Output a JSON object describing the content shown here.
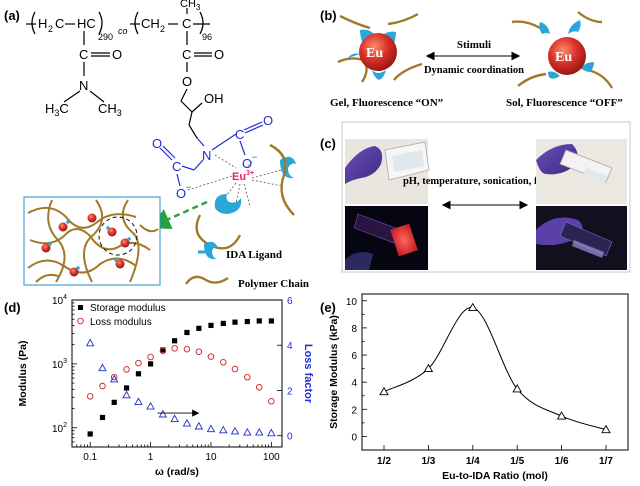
{
  "figure": {
    "panel_labels": {
      "a": "(a)",
      "b": "(b)",
      "c": "(c)",
      "d": "(d)",
      "e": "(e)"
    }
  },
  "panel_a": {
    "subscript_290": "290",
    "co_label": "co",
    "subscript_96": "96",
    "methyl_top": "CH",
    "methyl_top_sub": "3",
    "c_left": "C",
    "o_left": "O",
    "c_right": "C",
    "o_right": "O",
    "n_label": "N",
    "h3c_left": "H",
    "h3c_left_sub": "3",
    "h3c_left_c": "C",
    "ch3_right": "CH",
    "ch3_right_sub": "3",
    "o_ester": "O",
    "oh_label": "OH",
    "n_ida": "N",
    "c_ida_right": "C",
    "o_ida_right": "O",
    "o_minus_right": "O",
    "c_ida_left": "C",
    "o_ida_left": "O",
    "o_minus_left": "O",
    "eu_ion": "Eu",
    "eu_charge": "3+",
    "legend_ligand": "IDA Ligand",
    "legend_chain": "Polymer Chain"
  },
  "panel_b": {
    "eu_left": "Eu",
    "eu_right": "Eu",
    "arrow_top_label": "Stimuli",
    "arrow_bottom_label": "Dynamic coordination",
    "caption_left": "Gel, Fluorescence “ON”",
    "caption_right": "Sol, Fluorescence “OFF”"
  },
  "panel_c": {
    "arrow_label": "pH, temperature, sonication, force…"
  },
  "panel_d": {
    "legend": [
      "Storage modulus",
      "Loss modulus"
    ]
  },
  "panel_e": {},
  "chart_data": [
    {
      "type": "scatter",
      "xlabel": "ω (rad/s)",
      "ylabel": "Modulus (Pa)",
      "y2label": "Loss factor",
      "x_scale": "log",
      "y_scale": "log",
      "xlim": [
        0.05,
        150
      ],
      "ylim": [
        50,
        10000
      ],
      "y2lim": [
        -0.5,
        6
      ],
      "x_ticks": [
        0.1,
        1,
        10,
        100
      ],
      "x_tick_labels": [
        "0.1",
        "1",
        "10",
        "100"
      ],
      "y_ticks": [
        100,
        1000,
        10000
      ],
      "y2_ticks": [
        0,
        2,
        4,
        6
      ],
      "y2_tick_labels": [
        "0",
        "2",
        "4",
        "6"
      ],
      "y2_color": "#1f2fd0",
      "legend_position": "top-left",
      "arrow_direction": "right, toward loss factor axis",
      "series": [
        {
          "name": "Storage modulus",
          "axis": "left",
          "marker": "filled-square",
          "color": "#000000",
          "x": [
            0.1,
            0.16,
            0.25,
            0.4,
            0.63,
            1.0,
            1.6,
            2.5,
            4.0,
            6.3,
            10,
            16,
            25,
            40,
            63,
            100
          ],
          "y": [
            80,
            145,
            250,
            420,
            700,
            1000,
            1650,
            2300,
            3100,
            3600,
            4000,
            4300,
            4500,
            4600,
            4700,
            4700
          ]
        },
        {
          "name": "Loss modulus",
          "axis": "left",
          "marker": "open-circle",
          "color": "#d02020",
          "x": [
            0.1,
            0.16,
            0.25,
            0.4,
            0.63,
            1.0,
            1.6,
            2.5,
            4.0,
            6.3,
            10,
            16,
            25,
            40,
            63,
            100
          ],
          "y": [
            310,
            450,
            620,
            820,
            1030,
            1280,
            1600,
            1750,
            1700,
            1550,
            1300,
            1060,
            830,
            620,
            430,
            260
          ]
        },
        {
          "axis": "right",
          "marker": "open-triangle",
          "color": "#1f2fd0",
          "x": [
            0.1,
            0.16,
            0.25,
            0.4,
            0.63,
            1.0,
            1.6,
            2.5,
            4.0,
            6.3,
            10,
            16,
            25,
            40,
            63,
            100
          ],
          "y": [
            4.1,
            3.0,
            2.5,
            1.8,
            1.5,
            1.3,
            0.95,
            0.75,
            0.55,
            0.42,
            0.3,
            0.25,
            0.2,
            0.15,
            0.15,
            0.12
          ]
        }
      ]
    },
    {
      "type": "line",
      "xlabel": "Eu-to-IDA Ratio (mol)",
      "ylabel": "Storage Modulus (kPa)",
      "categories": [
        "1/2",
        "1/3",
        "1/4",
        "1/5",
        "1/6",
        "1/7"
      ],
      "values": [
        3.3,
        5.0,
        9.5,
        3.5,
        1.5,
        0.5
      ],
      "ylim": [
        -1,
        10.5
      ],
      "y_ticks": [
        0,
        2,
        4,
        6,
        8,
        10
      ],
      "marker": "open-triangle",
      "line": "smooth",
      "grid": false
    }
  ]
}
